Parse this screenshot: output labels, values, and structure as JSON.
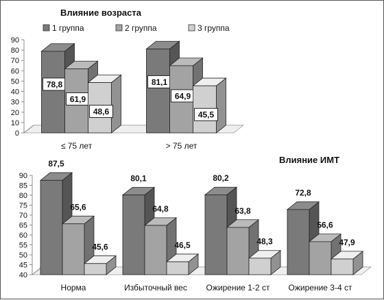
{
  "chart_data": [
    {
      "type": "bar",
      "title": "Влияние возраста",
      "categories": [
        "≤ 75 лет",
        "> 75 лет"
      ],
      "series": [
        {
          "name": "1 группа",
          "values": [
            78.8,
            81.1
          ],
          "value_labels": [
            "78,8",
            "81,1"
          ]
        },
        {
          "name": "2 группа",
          "values": [
            61.9,
            64.9
          ],
          "value_labels": [
            "61,9",
            "64,9"
          ]
        },
        {
          "name": "3 группа",
          "values": [
            48.6,
            45.5
          ],
          "value_labels": [
            "48,6",
            "45,5"
          ]
        }
      ],
      "ylim": [
        0,
        90
      ],
      "yticks": [
        0,
        10,
        20,
        30,
        40,
        50,
        60,
        70,
        80,
        90
      ],
      "legend": "top",
      "grid": false,
      "bar_style": "3d",
      "colors": [
        "#7a7a7a",
        "#a3a3a3",
        "#d0d0d0"
      ]
    },
    {
      "type": "bar",
      "title": "Влияние ИМТ",
      "categories": [
        "Норма",
        "Избыточный вес",
        "Ожирение 1-2 ст",
        "Ожирение 3-4 ст"
      ],
      "series": [
        {
          "name": "1 группа",
          "values": [
            87.5,
            80.1,
            80.2,
            72.8
          ],
          "value_labels": [
            "87,5",
            "80,1",
            "80,2",
            "72,8"
          ]
        },
        {
          "name": "2 группа",
          "values": [
            65.6,
            64.8,
            63.8,
            56.6
          ],
          "value_labels": [
            "65,6",
            "64,8",
            "63,8",
            "56,6"
          ]
        },
        {
          "name": "3 группа",
          "values": [
            45.6,
            46.5,
            48.3,
            47.9
          ],
          "value_labels": [
            "45,6",
            "46,5",
            "48,3",
            "47,9"
          ]
        }
      ],
      "ylim": [
        40,
        90
      ],
      "yticks": [
        40,
        45,
        50,
        55,
        60,
        65,
        70,
        75,
        80,
        85,
        90
      ],
      "grid": false,
      "bar_style": "3d",
      "colors": [
        "#7a7a7a",
        "#a3a3a3",
        "#d0d0d0"
      ]
    }
  ]
}
